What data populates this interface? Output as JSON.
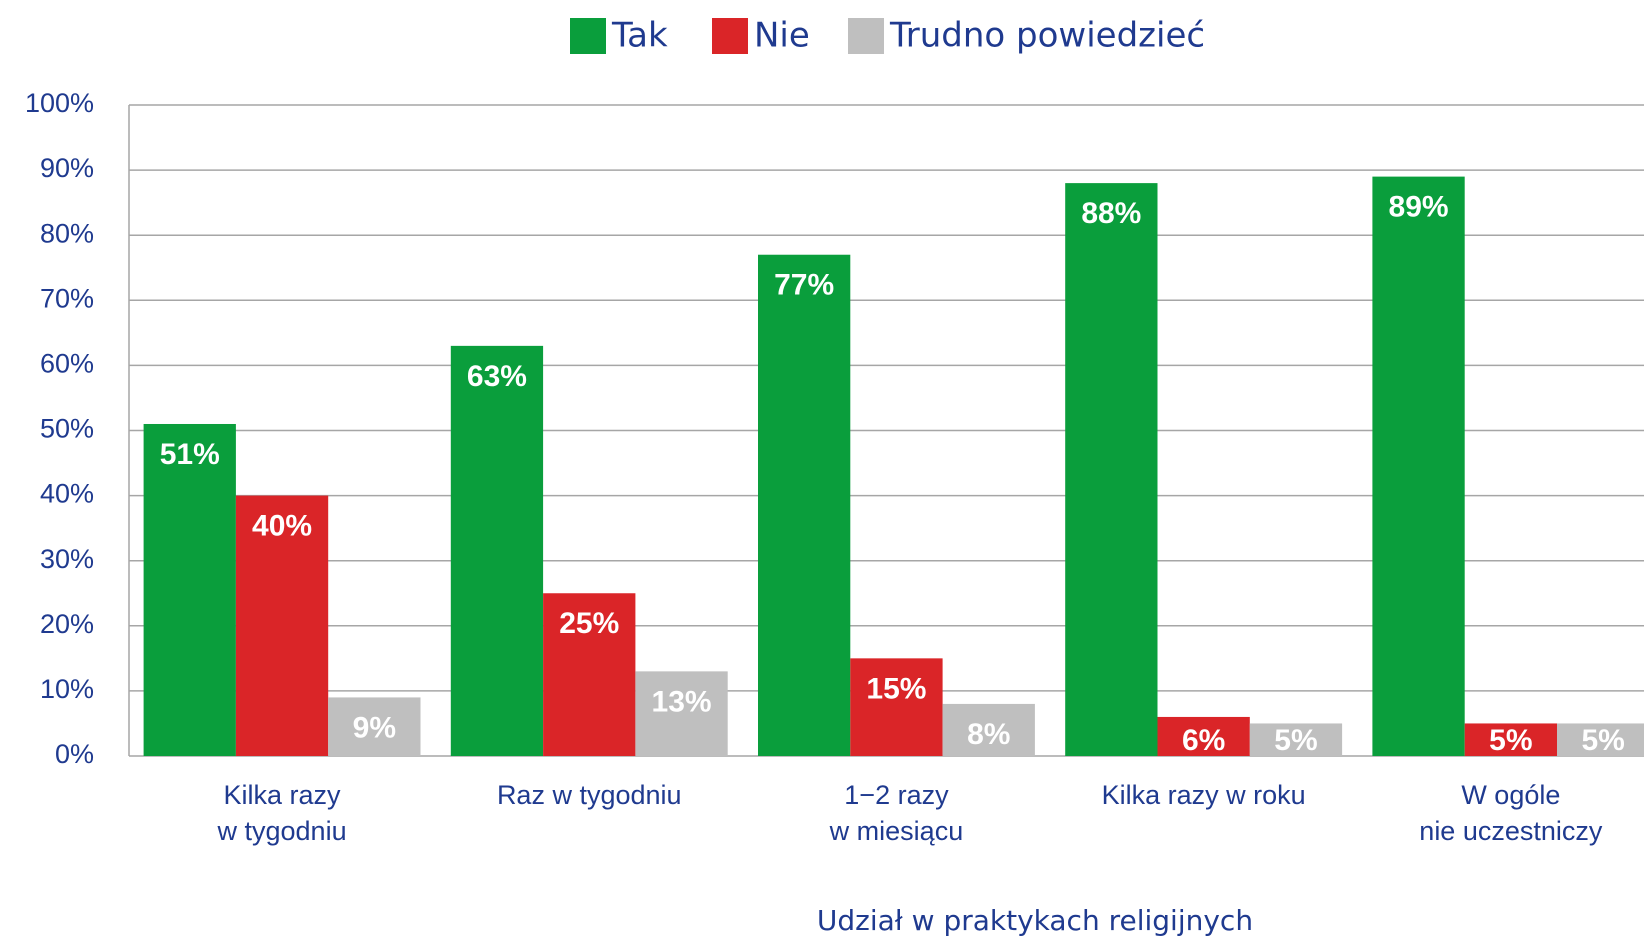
{
  "chart_data": {
    "type": "bar",
    "x_label": "Udział w praktykach religijnych",
    "categories": [
      [
        "Kilka razy",
        "w tygodniu"
      ],
      [
        "Raz w tygodniu"
      ],
      [
        "1−2 razy",
        "w miesiącu"
      ],
      [
        "Kilka razy w roku"
      ],
      [
        "W ogóle",
        "nie uczestniczy"
      ]
    ],
    "series": [
      {
        "name": "Tak",
        "color": "#0a9e3c",
        "values": [
          51,
          63,
          77,
          88,
          89
        ],
        "value_labels": [
          "51%",
          "63%",
          "77%",
          "88%",
          "89%"
        ]
      },
      {
        "name": "Nie",
        "color": "#da2528",
        "values": [
          40,
          25,
          15,
          6,
          5
        ],
        "value_labels": [
          "40%",
          "25%",
          "15%",
          "6%",
          "5%"
        ]
      },
      {
        "name": "Trudno powiedzieć",
        "color": "#bfbfbf",
        "values": [
          9,
          13,
          8,
          5,
          5
        ],
        "value_labels": [
          "9%",
          "13%",
          "8%",
          "5%",
          "5%"
        ]
      }
    ],
    "ylim": [
      0,
      100
    ],
    "yticks": [
      {
        "value": 0,
        "label": "0%"
      },
      {
        "value": 10,
        "label": "10%"
      },
      {
        "value": 20,
        "label": "20%"
      },
      {
        "value": 30,
        "label": "30%"
      },
      {
        "value": 40,
        "label": "40%"
      },
      {
        "value": 50,
        "label": "50%"
      },
      {
        "value": 60,
        "label": "60%"
      },
      {
        "value": 70,
        "label": "70%"
      },
      {
        "value": 80,
        "label": "80%"
      },
      {
        "value": 90,
        "label": "90%"
      },
      {
        "value": 100,
        "label": "100%"
      }
    ],
    "grid": true,
    "legend": "top"
  }
}
